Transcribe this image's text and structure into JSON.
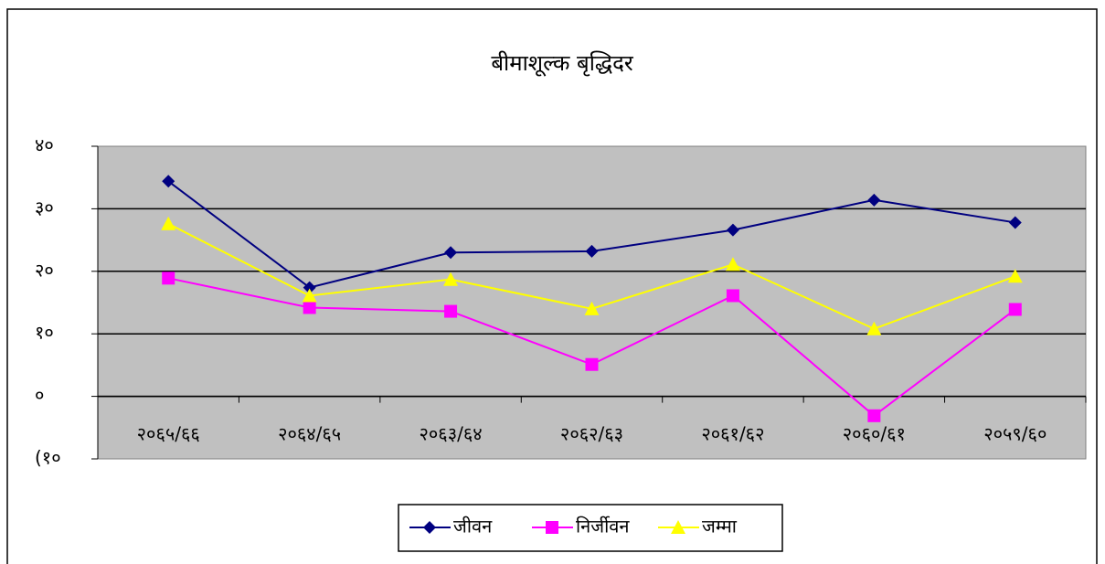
{
  "chart_data": {
    "type": "line",
    "title": "बीमाशूल्क बृद्धिदर",
    "categories": [
      "२०६५/६६",
      "२०६४/६५",
      "२०६३/६४",
      "२०६२/६३",
      "२०६१/६२",
      "२०६०/६१",
      "२०५९/६०"
    ],
    "series": [
      {
        "name": "जीवन",
        "color": "#000080",
        "marker": "diamond",
        "values": [
          34.4,
          17.4,
          23.0,
          23.2,
          26.6,
          31.4,
          27.8
        ]
      },
      {
        "name": "निर्जीवन",
        "color": "#ff00ff",
        "marker": "square",
        "values": [
          18.9,
          14.2,
          13.6,
          5.1,
          16.1,
          -3.1,
          13.9
        ]
      },
      {
        "name": "जम्मा",
        "color": "#ffff00",
        "marker": "triangle",
        "values": [
          27.6,
          16.1,
          18.7,
          14.0,
          21.1,
          10.8,
          19.2
        ]
      }
    ],
    "ylim": [
      -10,
      40
    ],
    "yticks": [
      {
        "value": -10,
        "label": "(१०"
      },
      {
        "value": 0,
        "label": "०"
      },
      {
        "value": 10,
        "label": "१०"
      },
      {
        "value": 20,
        "label": "२०"
      },
      {
        "value": 30,
        "label": "३०"
      },
      {
        "value": 40,
        "label": "४०"
      }
    ],
    "grid": true,
    "legend": "bottom"
  }
}
